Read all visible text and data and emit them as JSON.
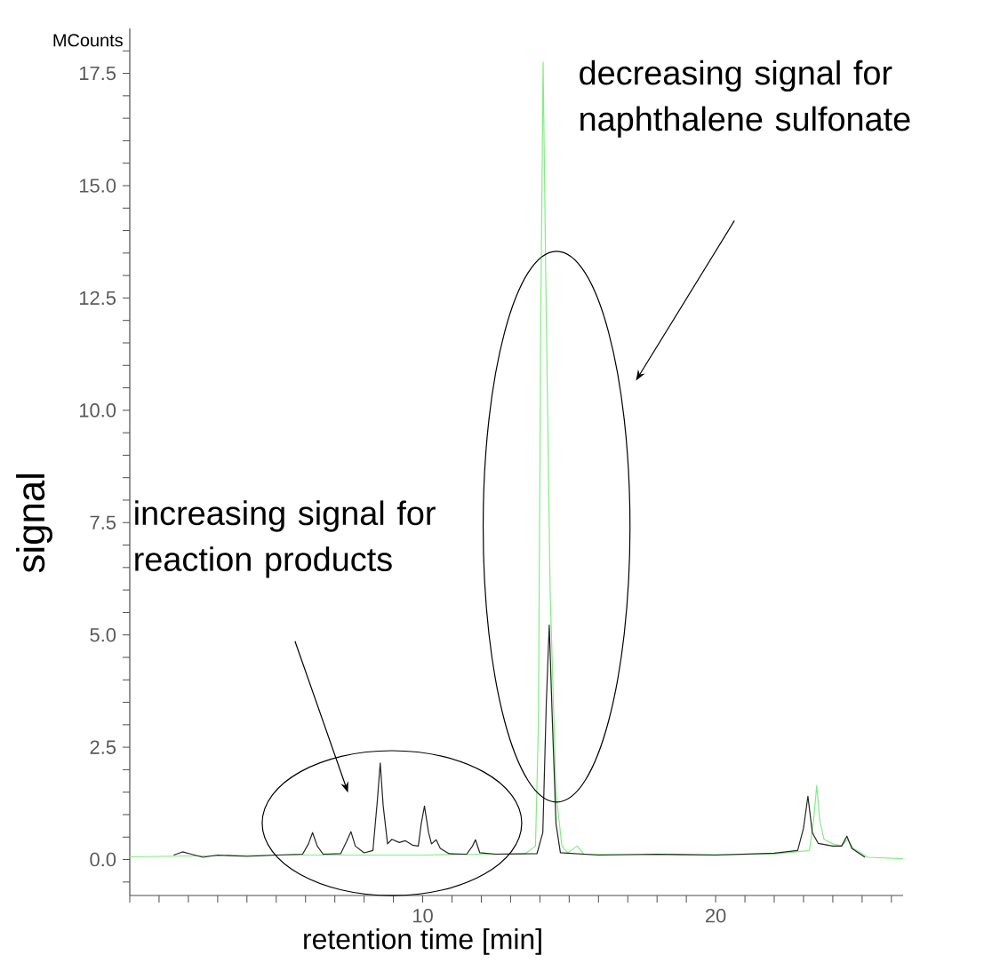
{
  "chart_data": {
    "type": "line",
    "xlabel": "retention time [min]",
    "ylabel": "signal",
    "annotations": [
      "MCounts",
      "increasing signal for reaction products",
      "decreasing signal for naphthalene sulfonate"
    ],
    "xlim": [
      0,
      26.4
    ],
    "ylim": [
      -0.8,
      18.5
    ],
    "xticks": [
      {
        "value": 0,
        "label": null
      },
      {
        "value": 1,
        "label": null
      },
      {
        "value": 2,
        "label": null
      },
      {
        "value": 3,
        "label": null
      },
      {
        "value": 4,
        "label": null
      },
      {
        "value": 5,
        "label": null
      },
      {
        "value": 6,
        "label": null
      },
      {
        "value": 7,
        "label": null
      },
      {
        "value": 8,
        "label": null
      },
      {
        "value": 9,
        "label": null
      },
      10,
      {
        "value": 11,
        "label": null
      },
      {
        "value": 12,
        "label": null
      },
      {
        "value": 13,
        "label": null
      },
      {
        "value": 14,
        "label": null
      },
      {
        "value": 15,
        "label": null
      },
      {
        "value": 16,
        "label": null
      },
      {
        "value": 17,
        "label": null
      },
      {
        "value": 18,
        "label": null
      },
      {
        "value": 19,
        "label": null
      },
      20,
      {
        "value": 21,
        "label": null
      },
      {
        "value": 22,
        "label": null
      },
      {
        "value": 23,
        "label": null
      },
      {
        "value": 24,
        "label": null
      },
      {
        "value": 25,
        "label": null
      },
      {
        "value": 26,
        "label": null
      }
    ],
    "yticks": [
      {
        "value": -0.5,
        "label": null
      },
      {
        "value": 0,
        "label": "0.0"
      },
      {
        "value": 0.5,
        "label": null
      },
      {
        "value": 1,
        "label": null
      },
      {
        "value": 1.5,
        "label": null
      },
      {
        "value": 2,
        "label": null
      },
      {
        "value": 2.5,
        "label": "2.5"
      },
      {
        "value": 3,
        "label": null
      },
      {
        "value": 3.5,
        "label": null
      },
      {
        "value": 4,
        "label": null
      },
      {
        "value": 4.5,
        "label": null
      },
      {
        "value": 5,
        "label": "5.0"
      },
      {
        "value": 5.5,
        "label": null
      },
      {
        "value": 6,
        "label": null
      },
      {
        "value": 6.5,
        "label": null
      },
      {
        "value": 7,
        "label": null
      },
      {
        "value": 7.5,
        "label": "7.5"
      },
      {
        "value": 8,
        "label": null
      },
      {
        "value": 8.5,
        "label": null
      },
      {
        "value": 9,
        "label": null
      },
      {
        "value": 9.5,
        "label": null
      },
      {
        "value": 10,
        "label": "10.0"
      },
      {
        "value": 10.5,
        "label": null
      },
      {
        "value": 11,
        "label": null
      },
      {
        "value": 11.5,
        "label": null
      },
      {
        "value": 12,
        "label": null
      },
      {
        "value": 12.5,
        "label": "12.5"
      },
      {
        "value": 13,
        "label": null
      },
      {
        "value": 13.5,
        "label": null
      },
      {
        "value": 14,
        "label": null
      },
      {
        "value": 14.5,
        "label": null
      },
      {
        "value": 15,
        "label": "15.0"
      },
      {
        "value": 15.5,
        "label": null
      },
      {
        "value": 16,
        "label": null
      },
      {
        "value": 16.5,
        "label": null
      },
      {
        "value": 17,
        "label": null
      },
      {
        "value": 17.5,
        "label": "17.5"
      },
      {
        "value": 18,
        "label": null
      }
    ],
    "series": [
      {
        "color": "#80ee80",
        "x": [
          0,
          2,
          5,
          8,
          10,
          12,
          13.5,
          13.85,
          13.95,
          14.03,
          14.11,
          14.2,
          14.35,
          14.55,
          14.75,
          14.95,
          15.27,
          15.5,
          18,
          22,
          23.2,
          23.35,
          23.45,
          23.55,
          23.7,
          24.0,
          24.3,
          24.5,
          24.7,
          25.2,
          26.4
        ],
        "values": [
          0.06,
          0.08,
          0.1,
          0.1,
          0.1,
          0.12,
          0.13,
          0.3,
          3,
          12,
          17.75,
          13,
          6,
          1.5,
          0.3,
          0.15,
          0.3,
          0.12,
          0.1,
          0.12,
          0.2,
          0.9,
          1.65,
          0.9,
          0.45,
          0.35,
          0.3,
          0.45,
          0.25,
          0.05,
          0.02
        ]
      },
      {
        "color": "#222222",
        "x": [
          1.5,
          1.8,
          2.1,
          2.5,
          3,
          4,
          5,
          5.9,
          6.1,
          6.24,
          6.4,
          6.6,
          7.2,
          7.4,
          7.55,
          7.7,
          8.0,
          8.3,
          8.45,
          8.55,
          8.65,
          8.8,
          8.95,
          9.2,
          9.4,
          9.65,
          9.85,
          9.95,
          10.06,
          10.2,
          10.3,
          10.46,
          10.6,
          10.9,
          11.5,
          11.7,
          11.8,
          11.95,
          12.5,
          13.9,
          14.1,
          14.22,
          14.32,
          14.42,
          14.55,
          14.7,
          16,
          18,
          20,
          22,
          22.8,
          23.0,
          23.15,
          23.3,
          23.5,
          24.0,
          24.3,
          24.48,
          24.65,
          25.1
        ],
        "values": [
          0.1,
          0.17,
          0.12,
          0.05,
          0.1,
          0.07,
          0.1,
          0.12,
          0.35,
          0.6,
          0.3,
          0.12,
          0.13,
          0.4,
          0.62,
          0.3,
          0.15,
          0.2,
          1.3,
          2.15,
          1.2,
          0.35,
          0.45,
          0.38,
          0.42,
          0.32,
          0.3,
          0.8,
          1.19,
          0.6,
          0.35,
          0.44,
          0.25,
          0.13,
          0.12,
          0.3,
          0.44,
          0.15,
          0.12,
          0.13,
          0.6,
          3.5,
          5.22,
          3.2,
          0.8,
          0.15,
          0.1,
          0.12,
          0.1,
          0.14,
          0.2,
          0.7,
          1.41,
          0.6,
          0.36,
          0.3,
          0.3,
          0.52,
          0.25,
          0.05
        ]
      }
    ]
  }
}
